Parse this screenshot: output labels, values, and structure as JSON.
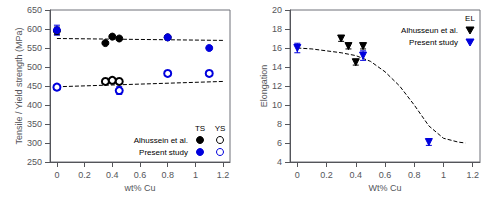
{
  "chart_data": [
    {
      "type": "scatter",
      "xlabel": "wt% Cu",
      "ylabel": "Tensile / Yield strength (MPa)",
      "xlim": [
        -0.05,
        1.25
      ],
      "xticks": [
        0,
        0.2,
        0.4,
        0.6,
        0.8,
        1,
        1.2
      ],
      "ylim": [
        250,
        650
      ],
      "yticks": [
        250,
        300,
        350,
        400,
        450,
        500,
        550,
        600,
        650
      ],
      "grid": false,
      "legend": "lower right",
      "series": [
        {
          "type": "line",
          "line_style": "dashed",
          "color": "#000000",
          "x": [
            0.0,
            1.2
          ],
          "values": [
            575,
            570
          ]
        },
        {
          "type": "line",
          "line_style": "dashed",
          "color": "#000000",
          "x": [
            0.0,
            1.2
          ],
          "values": [
            448,
            462
          ]
        },
        {
          "type": "scatter",
          "name": "Alhussein et al.",
          "group": "TS",
          "marker": "circle",
          "color": "#000000",
          "x": [
            0.0,
            0.35,
            0.4,
            0.45,
            0.8
          ],
          "values": [
            595,
            563,
            580,
            575,
            578
          ],
          "yerr": [
            10,
            4,
            4,
            4,
            4
          ]
        },
        {
          "type": "scatter",
          "name": "Alhussein et al.",
          "group": "YS",
          "marker": "open_circle",
          "color": "#000000",
          "x": [
            0.35,
            0.4,
            0.45
          ],
          "values": [
            462,
            465,
            462
          ],
          "yerr": [
            4,
            4,
            4
          ]
        },
        {
          "type": "scatter",
          "name": "Present study",
          "group": "TS",
          "marker": "circle",
          "color": "#0000dd",
          "x": [
            0.0,
            0.8,
            1.1
          ],
          "values": [
            597,
            578,
            550
          ],
          "yerr": [
            13,
            5,
            5
          ]
        },
        {
          "type": "scatter",
          "name": "Present study",
          "group": "YS",
          "marker": "open_circle",
          "color": "#0000dd",
          "x": [
            0.0,
            0.45,
            0.8,
            1.1
          ],
          "values": [
            447,
            438,
            483,
            483
          ],
          "yerr": [
            7,
            10,
            6,
            6
          ]
        }
      ]
    },
    {
      "type": "scatter",
      "xlabel": "Wt% Cu",
      "ylabel": "Elongation",
      "xlim": [
        -0.05,
        1.25
      ],
      "xticks": [
        0,
        0.2,
        0.4,
        0.6,
        0.8,
        1,
        1.2
      ],
      "ylim": [
        4,
        20
      ],
      "yticks": [
        4,
        6,
        8,
        10,
        12,
        14,
        16,
        18,
        20
      ],
      "grid": false,
      "legend": "upper right",
      "series": [
        {
          "type": "line",
          "line_style": "dashed",
          "color": "#000000",
          "x": [
            0.0,
            0.1,
            0.2,
            0.3,
            0.4,
            0.5,
            0.6,
            0.7,
            0.8,
            0.9,
            1.0,
            1.1,
            1.15
          ],
          "values": [
            16.0,
            15.9,
            15.7,
            15.5,
            15.2,
            14.6,
            13.5,
            12.0,
            10.0,
            7.8,
            6.5,
            6.1,
            6.0
          ]
        },
        {
          "type": "scatter",
          "name": "Alhusseun et al.",
          "group": "EL",
          "marker": "triangle_down",
          "color": "#000000",
          "x": [
            0.3,
            0.35,
            0.4,
            0.45
          ],
          "values": [
            17.0,
            16.2,
            14.5,
            16.2
          ],
          "yerr": [
            0.3,
            0.3,
            0.3,
            0.3
          ]
        },
        {
          "type": "scatter",
          "name": "Present study",
          "group": "EL",
          "marker": "triangle_down",
          "color": "#0000dd",
          "x": [
            0.0,
            0.45,
            0.9
          ],
          "values": [
            16.0,
            15.2,
            6.1
          ],
          "yerr": [
            0.5,
            0.5,
            0.35
          ]
        }
      ]
    }
  ]
}
